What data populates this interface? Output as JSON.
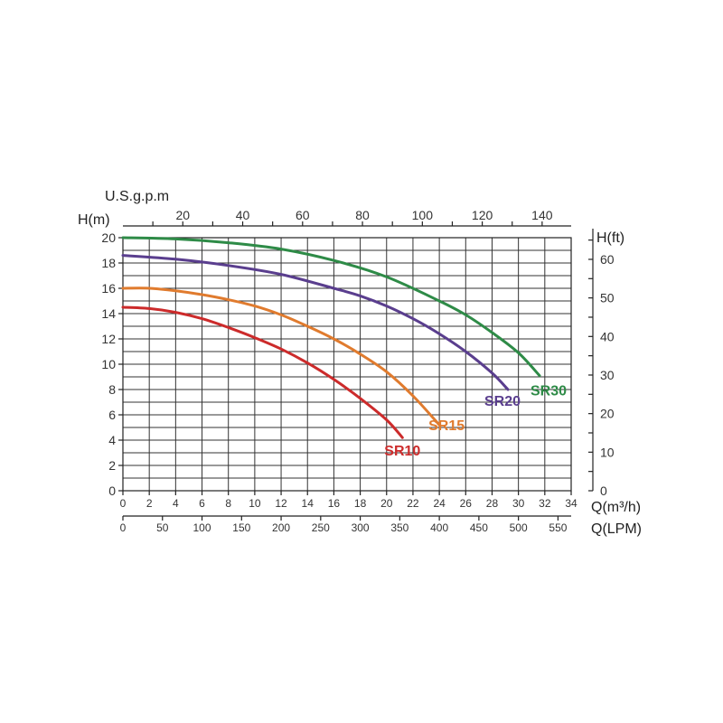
{
  "chart_data": {
    "type": "line",
    "grid": true,
    "x_axis": {
      "label": "Q(m³/h)",
      "range": [
        0,
        34
      ],
      "ticks": [
        0,
        2,
        4,
        6,
        8,
        10,
        12,
        14,
        16,
        18,
        20,
        22,
        24,
        26,
        28,
        30,
        32,
        34
      ]
    },
    "x_axis_lpm": {
      "label": "Q(LPM)",
      "ticks": [
        0,
        50,
        100,
        150,
        200,
        250,
        300,
        350,
        400,
        450,
        500,
        550
      ]
    },
    "x_axis_top": {
      "label": "U.S.g.p.m",
      "ticks": [
        20,
        40,
        60,
        80,
        100,
        120,
        140
      ]
    },
    "y_axis_left": {
      "label": "H(m)",
      "range": [
        0,
        20
      ],
      "ticks": [
        0,
        2,
        4,
        6,
        8,
        10,
        12,
        14,
        16,
        18,
        20
      ]
    },
    "y_axis_right": {
      "label": "H(ft)",
      "ticks": [
        0,
        10,
        20,
        30,
        40,
        50,
        60
      ]
    },
    "series": [
      {
        "name": "SR10",
        "color": "#cc2b2b",
        "points": [
          [
            0,
            14.5
          ],
          [
            2,
            14.4
          ],
          [
            4,
            14.1
          ],
          [
            6,
            13.6
          ],
          [
            8,
            12.9
          ],
          [
            10,
            12.1
          ],
          [
            12,
            11.2
          ],
          [
            14,
            10.1
          ],
          [
            16,
            8.8
          ],
          [
            18,
            7.3
          ],
          [
            20,
            5.6
          ],
          [
            21.2,
            4.2
          ]
        ]
      },
      {
        "name": "SR15",
        "color": "#e07b2e",
        "points": [
          [
            0,
            16.0
          ],
          [
            2,
            16.0
          ],
          [
            4,
            15.8
          ],
          [
            6,
            15.5
          ],
          [
            8,
            15.1
          ],
          [
            10,
            14.6
          ],
          [
            12,
            13.9
          ],
          [
            14,
            13.0
          ],
          [
            16,
            12.0
          ],
          [
            18,
            10.8
          ],
          [
            20,
            9.4
          ],
          [
            22,
            7.5
          ],
          [
            24,
            5.2
          ]
        ]
      },
      {
        "name": "SR20",
        "color": "#5a3e8e",
        "points": [
          [
            0,
            18.6
          ],
          [
            4,
            18.3
          ],
          [
            8,
            17.8
          ],
          [
            12,
            17.1
          ],
          [
            16,
            16.0
          ],
          [
            18,
            15.4
          ],
          [
            20,
            14.6
          ],
          [
            22,
            13.6
          ],
          [
            24,
            12.4
          ],
          [
            26,
            11.0
          ],
          [
            28,
            9.3
          ],
          [
            29.2,
            8.0
          ]
        ]
      },
      {
        "name": "SR30",
        "color": "#2e8b47",
        "points": [
          [
            0,
            20.0
          ],
          [
            4,
            19.9
          ],
          [
            8,
            19.6
          ],
          [
            12,
            19.1
          ],
          [
            16,
            18.2
          ],
          [
            20,
            16.9
          ],
          [
            24,
            15.0
          ],
          [
            26,
            13.9
          ],
          [
            28,
            12.5
          ],
          [
            30,
            10.9
          ],
          [
            31.6,
            9.1
          ]
        ]
      }
    ]
  }
}
